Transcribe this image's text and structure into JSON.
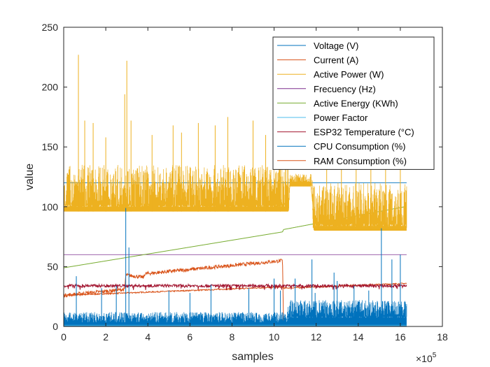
{
  "chart_data": {
    "type": "line",
    "title": "",
    "xlabel": "samples",
    "ylabel": "value",
    "xlim": [
      0,
      1800000
    ],
    "ylim": [
      0,
      250
    ],
    "x_exponent_label": "×10",
    "x_exponent_power": "5",
    "x_ticks": [
      0,
      200000,
      400000,
      600000,
      800000,
      1000000,
      1200000,
      1400000,
      1600000,
      1800000
    ],
    "x_tick_labels": [
      "0",
      "2",
      "4",
      "6",
      "8",
      "10",
      "12",
      "14",
      "16",
      "18"
    ],
    "y_ticks": [
      0,
      50,
      100,
      150,
      200,
      250
    ],
    "y_tick_labels": [
      "0",
      "50",
      "100",
      "150",
      "200",
      "250"
    ],
    "grid": false,
    "legend_position": "top-right",
    "series": [
      {
        "name": "Voltage (V)",
        "color": "#0072BD",
        "style": "flat",
        "x": [
          0,
          1630000
        ],
        "values": [
          120,
          120
        ]
      },
      {
        "name": "Current (A)",
        "color": "#D95319",
        "style": "trend",
        "x": [
          0,
          290000,
          295000,
          380000,
          385000,
          1040000,
          1045000,
          1060000,
          1065000,
          1620000
        ],
        "values": [
          26,
          31,
          43,
          41,
          44,
          55,
          0,
          0,
          0,
          1
        ],
        "noise": 1.5
      },
      {
        "name": "Active Power (W)",
        "color": "#EDB120",
        "style": "band",
        "x": [
          0,
          1070000,
          1075000,
          1180000,
          1185000,
          1630000
        ],
        "base": [
          96,
          96,
          117,
          117,
          80,
          80
        ],
        "top": [
          135,
          135,
          128,
          128,
          120,
          120
        ],
        "spikes": [
          [
            70000,
            227
          ],
          [
            100000,
            172
          ],
          [
            140000,
            170
          ],
          [
            200000,
            158
          ],
          [
            290000,
            194
          ],
          [
            300000,
            222
          ],
          [
            320000,
            172
          ],
          [
            420000,
            160
          ],
          [
            520000,
            168
          ],
          [
            560000,
            162
          ],
          [
            640000,
            170
          ],
          [
            720000,
            168
          ],
          [
            780000,
            175
          ],
          [
            900000,
            172
          ],
          [
            960000,
            160
          ],
          [
            1030000,
            152
          ],
          [
            1250000,
            155
          ],
          [
            1320000,
            175
          ],
          [
            1390000,
            165
          ],
          [
            1460000,
            170
          ],
          [
            1530000,
            170
          ],
          [
            1600000,
            162
          ]
        ]
      },
      {
        "name": "Frecuency (Hz)",
        "color": "#7E2F8E",
        "style": "flat",
        "x": [
          0,
          1630000
        ],
        "values": [
          60,
          60
        ]
      },
      {
        "name": "Active Energy (KWh)",
        "color": "#77AC30",
        "style": "trend",
        "x": [
          0,
          1040000,
          1045000,
          1620000
        ],
        "values": [
          49,
          79,
          81,
          100
        ],
        "noise": 0
      },
      {
        "name": "Power Factor",
        "color": "#4DBEEE",
        "style": "flat",
        "x": [
          0,
          1630000
        ],
        "values": [
          1,
          1
        ]
      },
      {
        "name": "ESP32 Temperature (°C)",
        "color": "#A2142F",
        "style": "wiggle",
        "x": [
          0,
          1630000
        ],
        "values": [
          34,
          34
        ],
        "noise": 1.2
      },
      {
        "name": "CPU Consumption (%)",
        "color": "#0072BD",
        "style": "noisy",
        "x": [
          0,
          1060000,
          1065000,
          1630000
        ],
        "base": [
          2,
          2,
          6,
          6
        ],
        "top": [
          12,
          12,
          22,
          22
        ],
        "spikes": [
          [
            60000,
            42
          ],
          [
            180000,
            32
          ],
          [
            250000,
            34
          ],
          [
            295000,
            99
          ],
          [
            310000,
            66
          ],
          [
            500000,
            30
          ],
          [
            600000,
            28
          ],
          [
            700000,
            35
          ],
          [
            880000,
            32
          ],
          [
            1000000,
            40
          ],
          [
            1030000,
            30
          ],
          [
            1100000,
            40
          ],
          [
            1180000,
            56
          ],
          [
            1195000,
            28
          ],
          [
            1285000,
            45
          ],
          [
            1300000,
            38
          ],
          [
            1380000,
            34
          ],
          [
            1450000,
            30
          ],
          [
            1510000,
            82
          ],
          [
            1560000,
            56
          ],
          [
            1600000,
            60
          ]
        ]
      },
      {
        "name": "RAM Consumption (%)",
        "color": "#D95319",
        "style": "trend",
        "x": [
          0,
          1040000,
          1045000,
          1630000
        ],
        "values": [
          26,
          33,
          32,
          36
        ],
        "noise": 0.5
      }
    ]
  }
}
